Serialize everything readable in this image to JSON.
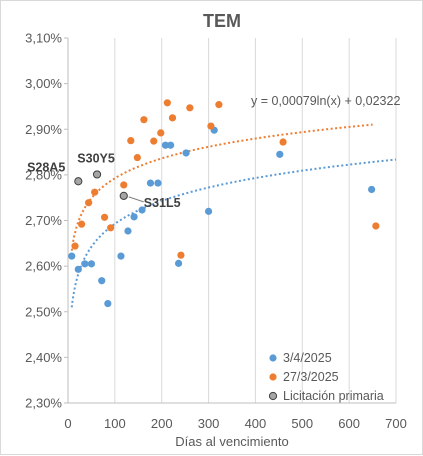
{
  "chart_data": {
    "type": "scatter",
    "title": "TEM",
    "xlabel": "Días al vencimiento",
    "ylabel": "",
    "xlim": [
      0,
      700
    ],
    "ylim": [
      2.3,
      3.1
    ],
    "x_ticks": [
      0,
      100,
      200,
      300,
      400,
      500,
      600,
      700
    ],
    "y_ticks": [
      2.3,
      2.4,
      2.5,
      2.6,
      2.7,
      2.8,
      2.9,
      3.0,
      3.1
    ],
    "y_tick_labels": [
      "2,30%",
      "2,40%",
      "2,50%",
      "2,60%",
      "2,70%",
      "2,80%",
      "2,90%",
      "3,00%",
      "3,10%"
    ],
    "grid": {
      "vertical": true,
      "horizontal": false
    },
    "legend_position": "bottom-right",
    "series": [
      {
        "name": "3/4/2025",
        "color": "#5b9bd5",
        "points": [
          [
            8,
            2.622
          ],
          [
            22,
            2.593
          ],
          [
            36,
            2.605
          ],
          [
            50,
            2.605
          ],
          [
            72,
            2.568
          ],
          [
            85,
            2.518
          ],
          [
            113,
            2.622
          ],
          [
            128,
            2.677
          ],
          [
            141,
            2.708
          ],
          [
            158,
            2.723
          ],
          [
            176,
            2.782
          ],
          [
            192,
            2.782
          ],
          [
            208,
            2.865
          ],
          [
            219,
            2.865
          ],
          [
            236,
            2.606
          ],
          [
            252,
            2.848
          ],
          [
            300,
            2.72
          ],
          [
            312,
            2.898
          ],
          [
            452,
            2.845
          ],
          [
            648,
            2.768
          ]
        ],
        "trendline": {
          "type": "log",
          "x_range": [
            8,
            700
          ]
        }
      },
      {
        "name": "27/3/2025",
        "color": "#ed7d31",
        "points": [
          [
            15,
            2.644
          ],
          [
            29,
            2.692
          ],
          [
            44,
            2.739
          ],
          [
            57,
            2.762
          ],
          [
            78,
            2.707
          ],
          [
            91,
            2.684
          ],
          [
            119,
            2.778
          ],
          [
            134,
            2.875
          ],
          [
            148,
            2.838
          ],
          [
            162,
            2.921
          ],
          [
            183,
            2.874
          ],
          [
            198,
            2.892
          ],
          [
            212,
            2.958
          ],
          [
            223,
            2.925
          ],
          [
            241,
            2.624
          ],
          [
            260,
            2.947
          ],
          [
            305,
            2.907
          ],
          [
            322,
            2.954
          ],
          [
            459,
            2.872
          ],
          [
            657,
            2.688
          ]
        ],
        "trendline": {
          "type": "log",
          "equation": "y = 0,00079ln(x) + 0,02322",
          "x_range": [
            8,
            650
          ]
        }
      },
      {
        "name": "Licitación primaria",
        "color": "#a5a5a5",
        "points": [
          [
            22,
            2.786
          ],
          [
            62,
            2.801
          ],
          [
            119,
            2.754
          ]
        ],
        "point_labels": [
          "S28A5",
          "S30Y5",
          "S31L5"
        ]
      }
    ]
  }
}
